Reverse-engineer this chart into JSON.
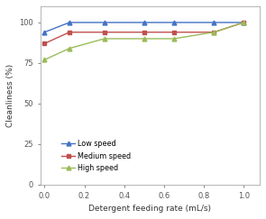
{
  "x_values": [
    0,
    0.125,
    0.3,
    0.5,
    0.65,
    0.85,
    1.0
  ],
  "low_speed": [
    94,
    100,
    100,
    100,
    100,
    100,
    100
  ],
  "medium_speed": [
    87,
    94,
    94,
    94,
    94,
    94,
    100
  ],
  "high_speed": [
    77,
    84,
    90,
    90,
    90,
    94,
    100
  ],
  "low_color": "#4472c4",
  "medium_color": "#c0504d",
  "high_color": "#9bbb59",
  "xlabel": "Detergent feeding rate (mL/s)",
  "ylabel": "Cleanliness (%)",
  "xlim": [
    -0.02,
    1.08
  ],
  "ylim": [
    0,
    110
  ],
  "yticks": [
    0,
    25,
    50,
    75,
    100
  ],
  "xticks": [
    0,
    0.2,
    0.4,
    0.6,
    0.8,
    1.0
  ],
  "legend_labels": [
    "Low speed",
    "Medium speed",
    "High speed"
  ],
  "marker_low": "^",
  "marker_medium": "s",
  "marker_high": "^",
  "bg_color": "#ffffff"
}
